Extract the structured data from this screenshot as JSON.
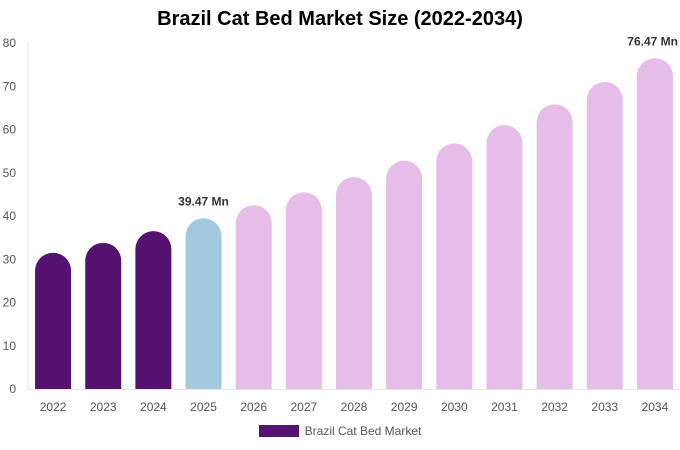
{
  "chart_data": {
    "type": "bar",
    "title": "Brazil Cat Bed Market Size (2022-2034)",
    "xlabel": "",
    "ylabel": "",
    "ylim": [
      0,
      80
    ],
    "yticks": [
      0,
      10,
      20,
      30,
      40,
      50,
      60,
      70,
      80
    ],
    "categories": [
      "2022",
      "2023",
      "2024",
      "2025",
      "2026",
      "2027",
      "2028",
      "2029",
      "2030",
      "2031",
      "2032",
      "2033",
      "2034"
    ],
    "series": [
      {
        "name": "Brazil Cat Bed Market",
        "values": [
          31.5,
          33.8,
          36.5,
          39.47,
          42.5,
          45.5,
          49.0,
          52.8,
          56.8,
          61.0,
          65.8,
          71.0,
          76.47
        ]
      }
    ],
    "bar_colors": [
      "#551270",
      "#551270",
      "#551270",
      "#a3c9de",
      "#e6bde9",
      "#e6bde9",
      "#e6bde9",
      "#e6bde9",
      "#e6bde9",
      "#e6bde9",
      "#e6bde9",
      "#e6bde9",
      "#e6bde9"
    ],
    "data_labels": [
      {
        "category": "2025",
        "text": "39.47 Mn"
      },
      {
        "category": "2034",
        "text": "76.47 Mn"
      }
    ],
    "legend": {
      "position": "bottom",
      "label": "Brazil Cat Bed Market",
      "color": "#551270"
    },
    "grid": false
  }
}
